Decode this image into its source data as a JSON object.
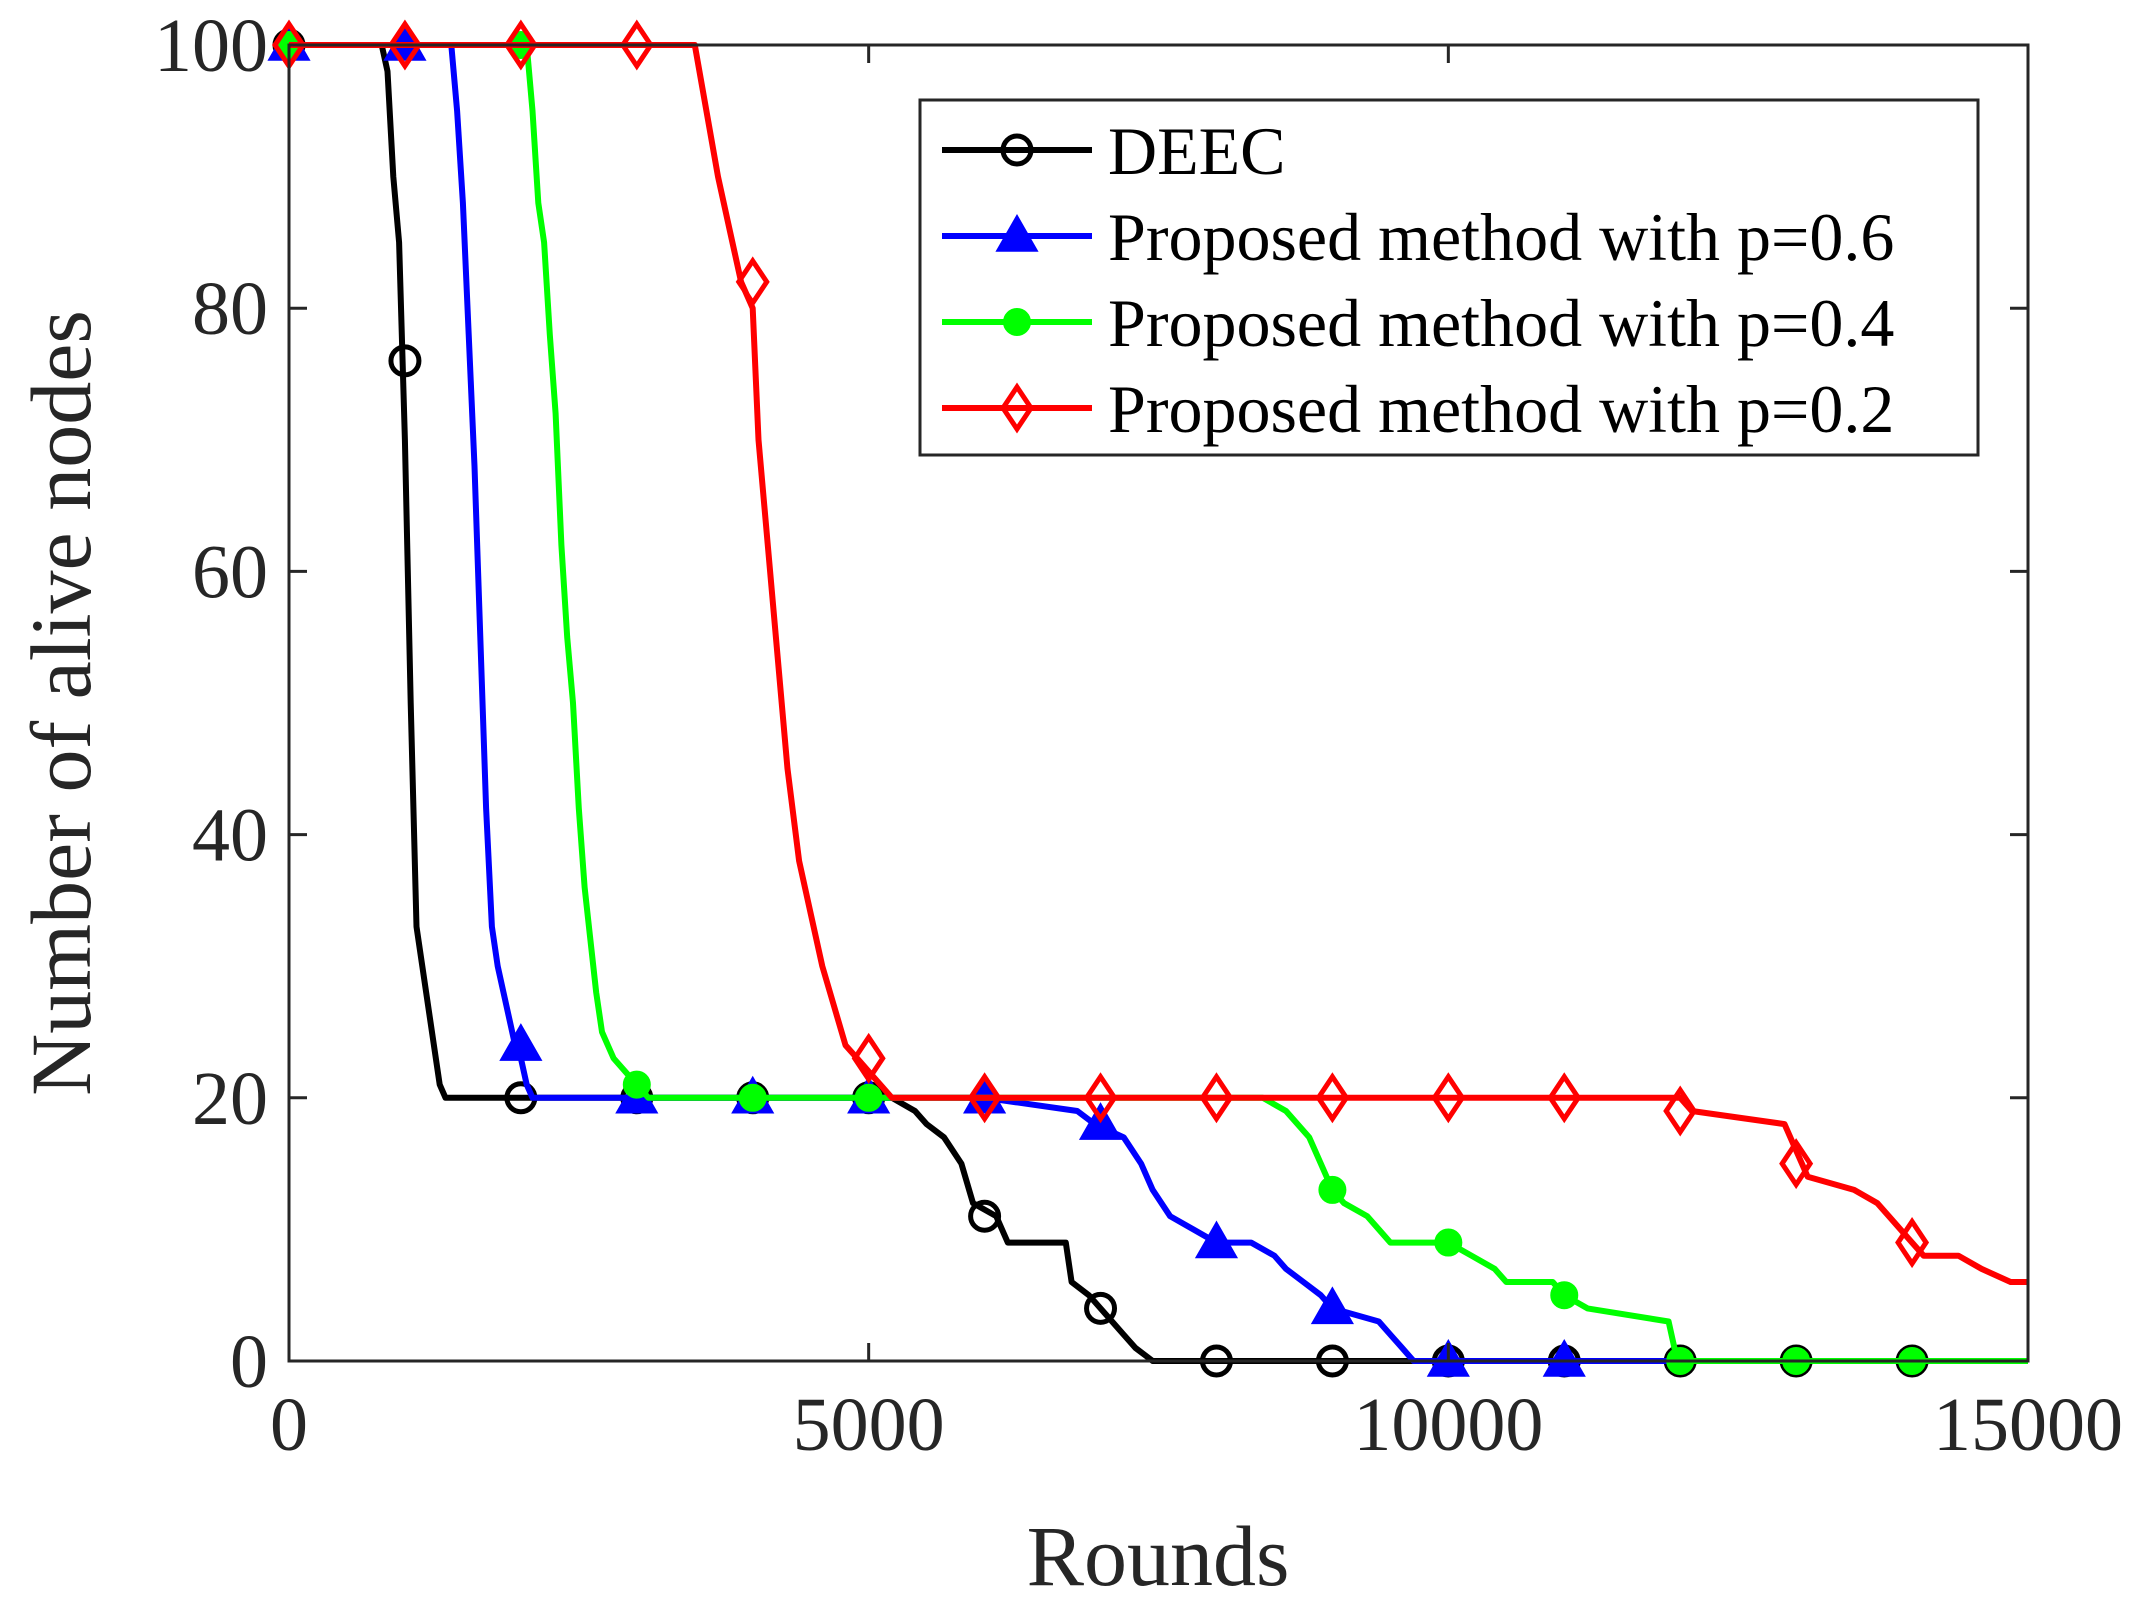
{
  "chart_data": {
    "type": "line",
    "title": "",
    "xlabel": "Rounds",
    "ylabel": "Number of alive nodes",
    "xlim": [
      0,
      15000
    ],
    "ylim": [
      0,
      100
    ],
    "xticks": [
      0,
      5000,
      10000,
      15000
    ],
    "xtick_labels": [
      "0",
      "5000",
      "10000",
      "15000"
    ],
    "yticks": [
      0,
      20,
      40,
      60,
      80,
      100
    ],
    "ytick_labels": [
      "0",
      "20",
      "40",
      "60",
      "80",
      "100"
    ],
    "grid": false,
    "legend_position": "top-right",
    "series": [
      {
        "name": "DEEC",
        "color": "#000000",
        "marker": "circle",
        "points": [
          [
            0,
            100
          ],
          [
            800,
            100
          ],
          [
            850,
            98
          ],
          [
            900,
            90
          ],
          [
            950,
            85
          ],
          [
            1000,
            70
          ],
          [
            1050,
            50
          ],
          [
            1100,
            33
          ],
          [
            1150,
            30
          ],
          [
            1200,
            27
          ],
          [
            1250,
            24
          ],
          [
            1300,
            21
          ],
          [
            1350,
            20
          ],
          [
            5000,
            20
          ],
          [
            5200,
            20
          ],
          [
            5400,
            19
          ],
          [
            5500,
            18
          ],
          [
            5650,
            17
          ],
          [
            5800,
            15
          ],
          [
            5900,
            12
          ],
          [
            6100,
            11
          ],
          [
            6200,
            9
          ],
          [
            6700,
            9
          ],
          [
            6750,
            6
          ],
          [
            6900,
            5
          ],
          [
            7100,
            3
          ],
          [
            7200,
            2
          ],
          [
            7300,
            1
          ],
          [
            7450,
            0
          ],
          [
            15000,
            0
          ]
        ],
        "markers": [
          [
            0,
            100
          ],
          [
            1000,
            76
          ],
          [
            2000,
            20
          ],
          [
            3000,
            20
          ],
          [
            4000,
            20
          ],
          [
            5000,
            20
          ],
          [
            6000,
            11
          ],
          [
            7000,
            4
          ],
          [
            8000,
            0
          ],
          [
            9000,
            0
          ],
          [
            10000,
            0
          ],
          [
            11000,
            0
          ],
          [
            12000,
            0
          ],
          [
            13000,
            0
          ],
          [
            14000,
            0
          ]
        ]
      },
      {
        "name": "Proposed method with p=0.6",
        "color": "#0000ff",
        "marker": "triangle",
        "points": [
          [
            0,
            100
          ],
          [
            1400,
            100
          ],
          [
            1450,
            95
          ],
          [
            1500,
            88
          ],
          [
            1550,
            78
          ],
          [
            1600,
            68
          ],
          [
            1650,
            55
          ],
          [
            1700,
            42
          ],
          [
            1750,
            33
          ],
          [
            1800,
            30
          ],
          [
            1850,
            28
          ],
          [
            1900,
            26
          ],
          [
            1950,
            24
          ],
          [
            2000,
            23
          ],
          [
            2050,
            21
          ],
          [
            2100,
            20
          ],
          [
            5000,
            20
          ],
          [
            6000,
            20
          ],
          [
            6800,
            19
          ],
          [
            6950,
            18
          ],
          [
            7200,
            17
          ],
          [
            7350,
            15
          ],
          [
            7450,
            13
          ],
          [
            7600,
            11
          ],
          [
            7800,
            10
          ],
          [
            8000,
            9
          ],
          [
            8300,
            9
          ],
          [
            8500,
            8
          ],
          [
            8600,
            7
          ],
          [
            8750,
            6
          ],
          [
            8900,
            5
          ],
          [
            9000,
            4
          ],
          [
            9400,
            3
          ],
          [
            9500,
            2
          ],
          [
            9600,
            1
          ],
          [
            9700,
            0
          ],
          [
            15000,
            0
          ]
        ],
        "markers": [
          [
            0,
            100
          ],
          [
            1000,
            100
          ],
          [
            2000,
            24
          ],
          [
            3000,
            20
          ],
          [
            4000,
            20
          ],
          [
            5000,
            20
          ],
          [
            6000,
            20
          ],
          [
            7000,
            18
          ],
          [
            8000,
            9
          ],
          [
            9000,
            4
          ],
          [
            10000,
            0
          ],
          [
            11000,
            0
          ]
        ]
      },
      {
        "name": "Proposed method with p=0.4",
        "color": "#00ff00",
        "marker": "dot",
        "points": [
          [
            0,
            100
          ],
          [
            2050,
            100
          ],
          [
            2100,
            95
          ],
          [
            2150,
            88
          ],
          [
            2200,
            85
          ],
          [
            2250,
            78
          ],
          [
            2300,
            72
          ],
          [
            2350,
            62
          ],
          [
            2400,
            55
          ],
          [
            2450,
            50
          ],
          [
            2500,
            42
          ],
          [
            2550,
            36
          ],
          [
            2600,
            32
          ],
          [
            2650,
            28
          ],
          [
            2700,
            25
          ],
          [
            2750,
            24
          ],
          [
            2800,
            23
          ],
          [
            2900,
            22
          ],
          [
            3000,
            21
          ],
          [
            3100,
            20
          ],
          [
            8400,
            20
          ],
          [
            8600,
            19
          ],
          [
            8800,
            17
          ],
          [
            8900,
            15
          ],
          [
            9000,
            13
          ],
          [
            9100,
            12
          ],
          [
            9300,
            11
          ],
          [
            9400,
            10
          ],
          [
            9500,
            9
          ],
          [
            10000,
            9
          ],
          [
            10200,
            8
          ],
          [
            10400,
            7
          ],
          [
            10500,
            6
          ],
          [
            10900,
            6
          ],
          [
            11000,
            5
          ],
          [
            11200,
            4
          ],
          [
            11900,
            3
          ],
          [
            11950,
            1
          ],
          [
            12000,
            0
          ],
          [
            15000,
            0
          ]
        ],
        "markers": [
          [
            0,
            100
          ],
          [
            2000,
            100
          ],
          [
            3000,
            21
          ],
          [
            4000,
            20
          ],
          [
            5000,
            20
          ],
          [
            9000,
            13
          ],
          [
            10000,
            9
          ],
          [
            11000,
            5
          ],
          [
            12000,
            0
          ],
          [
            13000,
            0
          ],
          [
            14000,
            0
          ]
        ]
      },
      {
        "name": "Proposed method with p=0.2",
        "color": "#ff0000",
        "marker": "diamond",
        "points": [
          [
            0,
            100
          ],
          [
            3500,
            100
          ],
          [
            3600,
            95
          ],
          [
            3700,
            90
          ],
          [
            3800,
            86
          ],
          [
            3900,
            82
          ],
          [
            4000,
            80
          ],
          [
            4050,
            70
          ],
          [
            4100,
            65
          ],
          [
            4200,
            55
          ],
          [
            4300,
            45
          ],
          [
            4400,
            38
          ],
          [
            4500,
            34
          ],
          [
            4600,
            30
          ],
          [
            4700,
            27
          ],
          [
            4800,
            24
          ],
          [
            4900,
            23
          ],
          [
            5000,
            22
          ],
          [
            5100,
            21
          ],
          [
            5200,
            20
          ],
          [
            12000,
            20
          ],
          [
            12100,
            19
          ],
          [
            12900,
            18
          ],
          [
            13000,
            16
          ],
          [
            13050,
            15
          ],
          [
            13100,
            14
          ],
          [
            13500,
            13
          ],
          [
            13700,
            12
          ],
          [
            13800,
            11
          ],
          [
            14000,
            9
          ],
          [
            14100,
            8
          ],
          [
            14400,
            8
          ],
          [
            14600,
            7
          ],
          [
            14850,
            6
          ],
          [
            15000,
            6
          ]
        ],
        "markers": [
          [
            0,
            100
          ],
          [
            1000,
            100
          ],
          [
            2000,
            100
          ],
          [
            3000,
            100
          ],
          [
            4000,
            82
          ],
          [
            5000,
            23
          ],
          [
            6000,
            20
          ],
          [
            7000,
            20
          ],
          [
            8000,
            20
          ],
          [
            9000,
            20
          ],
          [
            10000,
            20
          ],
          [
            11000,
            20
          ],
          [
            12000,
            19
          ],
          [
            13000,
            15
          ],
          [
            14000,
            9
          ]
        ]
      }
    ]
  }
}
